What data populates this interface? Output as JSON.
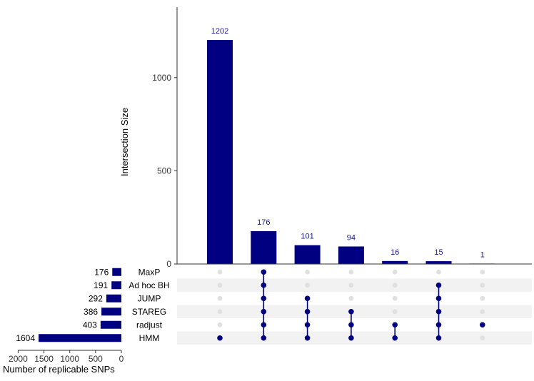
{
  "colors": {
    "bar": "#000080",
    "dot_active": "#000080",
    "dot_inactive": "#e0e0e0",
    "stripe": "#f2f2f2"
  },
  "chart_data": {
    "type": "bar",
    "ylabel": "Intersection Size",
    "y_ticks": [
      "0",
      "500",
      "1000"
    ],
    "ylim": [
      0,
      1350
    ],
    "intersections": [
      {
        "size": 1202,
        "label": "1202",
        "members": [
          "HMM"
        ]
      },
      {
        "size": 176,
        "label": "176",
        "members": [
          "MaxP",
          "Ad hoc BH",
          "JUMP",
          "STAREG",
          "radjust",
          "HMM"
        ]
      },
      {
        "size": 101,
        "label": "101",
        "members": [
          "JUMP",
          "STAREG",
          "radjust",
          "HMM"
        ]
      },
      {
        "size": 94,
        "label": "94",
        "members": [
          "STAREG",
          "radjust",
          "HMM"
        ]
      },
      {
        "size": 16,
        "label": "16",
        "members": [
          "radjust",
          "HMM"
        ]
      },
      {
        "size": 15,
        "label": "15",
        "members": [
          "Ad hoc BH",
          "JUMP",
          "STAREG",
          "radjust",
          "HMM"
        ]
      },
      {
        "size": 1,
        "label": "1",
        "members": [
          "radjust"
        ]
      }
    ],
    "sets": [
      {
        "name": "MaxP",
        "size": 176,
        "label": "176"
      },
      {
        "name": "Ad hoc BH",
        "size": 191,
        "label": "191"
      },
      {
        "name": "JUMP",
        "size": 292,
        "label": "292"
      },
      {
        "name": "STAREG",
        "size": 386,
        "label": "386"
      },
      {
        "name": "radjust",
        "size": 403,
        "label": "403"
      },
      {
        "name": "HMM",
        "size": 1604,
        "label": "1604"
      }
    ],
    "set_size_xlabel": "Number of replicable SNPs",
    "set_size_ticks": [
      {
        "value": 2000,
        "label": "2000"
      },
      {
        "value": 1500,
        "label": "1500"
      },
      {
        "value": 1000,
        "label": "1000"
      },
      {
        "value": 500,
        "label": "500"
      },
      {
        "value": 0,
        "label": "0"
      }
    ],
    "set_size_xlim": [
      0,
      2000
    ]
  }
}
